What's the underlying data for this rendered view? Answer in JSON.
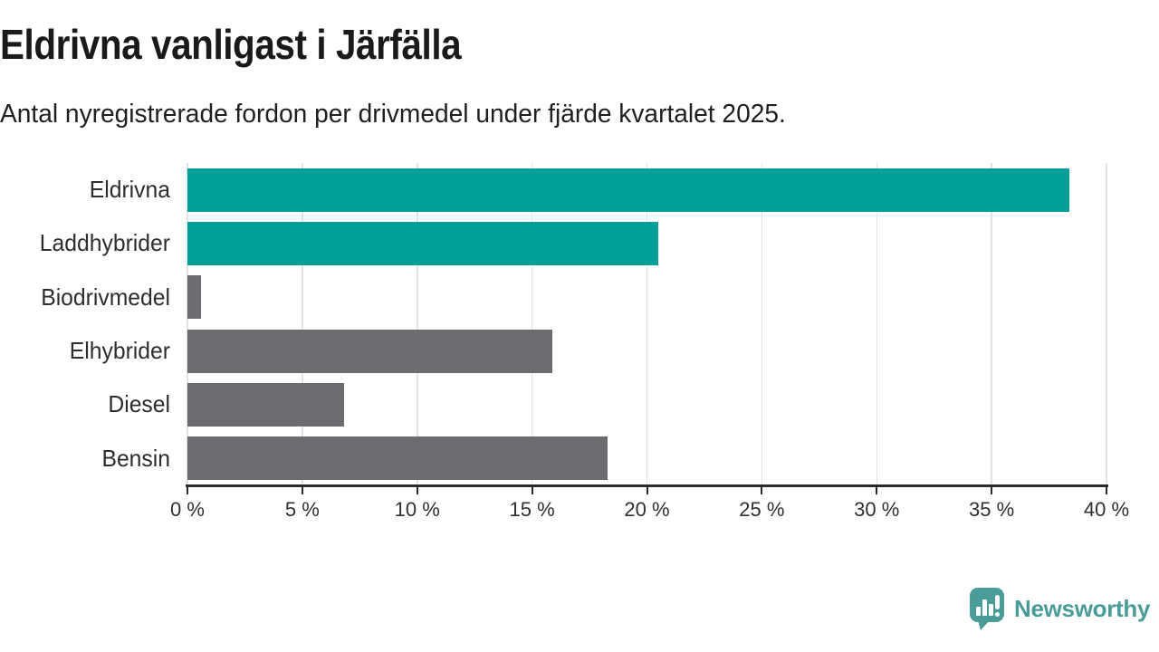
{
  "header": {
    "title": "Eldrivna vanligast i Järfälla",
    "subtitle": "Antal nyregistrerade fordon per drivmedel under fjärde kvartalet 2025."
  },
  "chart_data": {
    "type": "bar",
    "orientation": "horizontal",
    "title": "Eldrivna vanligast i Järfälla",
    "subtitle": "Antal nyregistrerade fordon per drivmedel under fjärde kvartalet 2025.",
    "categories": [
      "Eldrivna",
      "Laddhybrider",
      "Biodrivmedel",
      "Elhybrider",
      "Diesel",
      "Bensin"
    ],
    "values": [
      38.4,
      20.5,
      0.6,
      15.9,
      6.8,
      18.3
    ],
    "unit": "%",
    "xlabel": "",
    "ylabel": "",
    "xlim": [
      0,
      40
    ],
    "x_ticks": [
      0,
      5,
      10,
      15,
      20,
      25,
      30,
      35,
      40
    ],
    "x_tick_suffix": " %",
    "bar_colors": [
      "#00a098",
      "#00a098",
      "#6b6b70",
      "#6b6b70",
      "#6b6b70",
      "#6b6b70"
    ],
    "grid": true,
    "legend": false
  },
  "footer": {
    "brand": "Newsworthy"
  },
  "colors": {
    "bar_teal": "#00a098",
    "bar_gray": "#6b6b70",
    "logo_teal": "#4a9c98",
    "grid": "#e3e3e3",
    "axis": "#2b2b2b",
    "text": "#1a1a1a",
    "background": "#ffffff"
  }
}
